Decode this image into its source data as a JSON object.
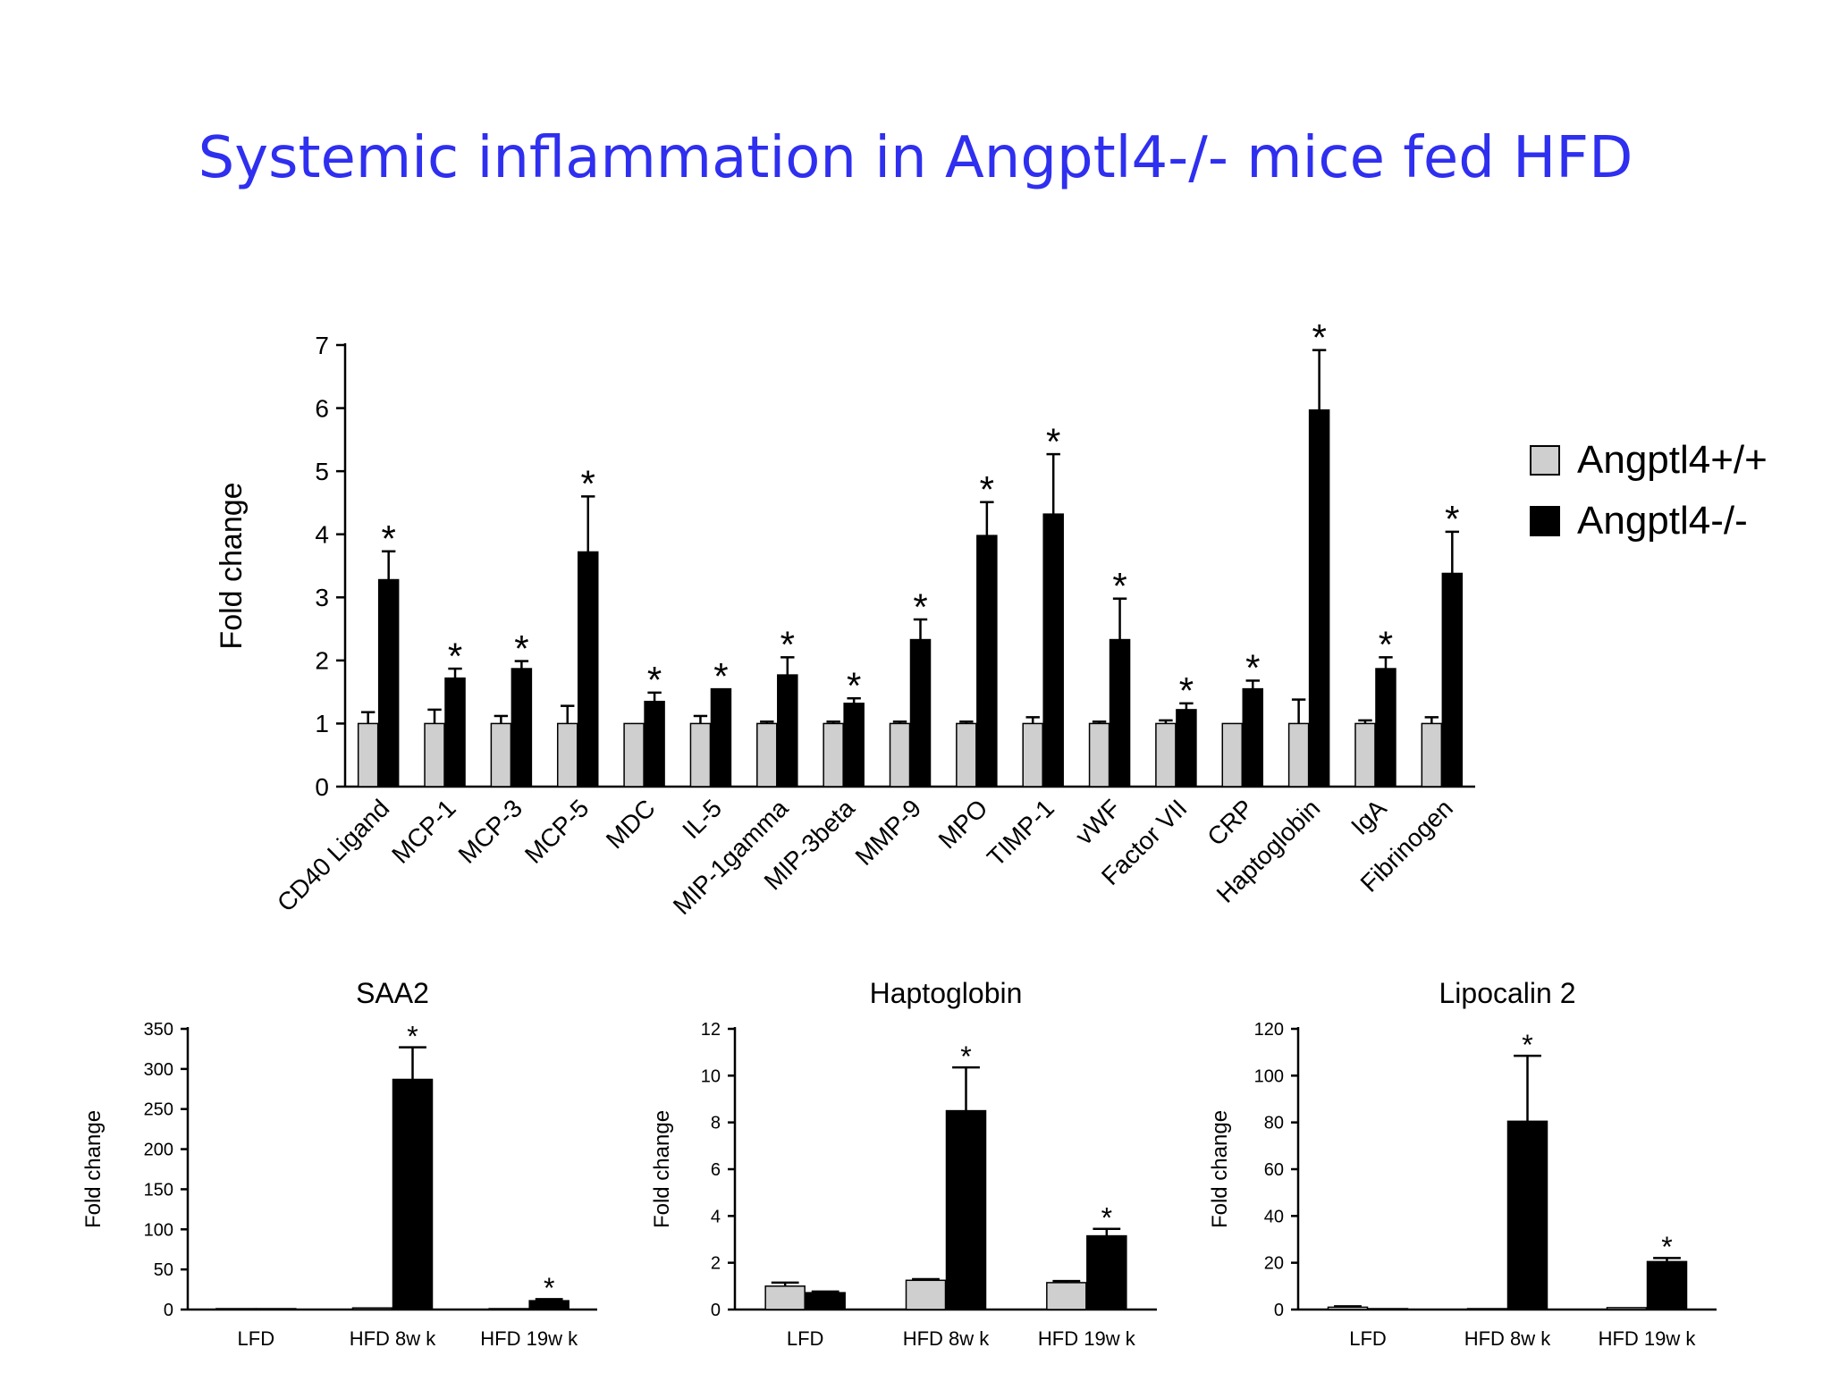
{
  "slide": {
    "title": "Systemic inflammation in Angptl4-/- mice fed HFD"
  },
  "colors": {
    "title": "#2f2ff0",
    "wildtype": "#cfcfcf",
    "knockout": "#000000"
  },
  "legend": [
    {
      "label": "Angptl4+/+",
      "color": "#cfcfcf"
    },
    {
      "label": "Angptl4-/-",
      "color": "#000000"
    }
  ],
  "chart_data": [
    {
      "id": "main",
      "type": "bar",
      "title": "",
      "ylabel": "Fold change",
      "ylim": [
        0,
        7
      ],
      "yticks": [
        0,
        1,
        2,
        3,
        4,
        5,
        6,
        7
      ],
      "categories": [
        "CD40 Ligand",
        "MCP-1",
        "MCP-3",
        "MCP-5",
        "MDC",
        "IL-5",
        "MIP-1gamma",
        "MIP-3beta",
        "MMP-9",
        "MPO",
        "TIMP-1",
        "vWF",
        "Factor VII",
        "CRP",
        "Haptoglobin",
        "IgA",
        "Fibrinogen"
      ],
      "series": [
        {
          "name": "Angptl4+/+",
          "values": [
            1.0,
            1.0,
            1.0,
            1.0,
            1.0,
            1.0,
            1.0,
            1.0,
            1.0,
            1.0,
            1.0,
            1.0,
            1.0,
            1.0,
            1.0,
            1.0,
            1.0
          ],
          "errors": [
            0.18,
            0.22,
            0.12,
            0.28,
            0.0,
            0.12,
            0.03,
            0.03,
            0.03,
            0.03,
            0.1,
            0.03,
            0.05,
            0.0,
            0.38,
            0.05,
            0.1
          ]
        },
        {
          "name": "Angptl4-/-",
          "values": [
            3.28,
            1.72,
            1.87,
            3.72,
            1.35,
            1.55,
            1.77,
            1.32,
            2.33,
            3.98,
            4.32,
            2.33,
            1.22,
            1.55,
            5.97,
            1.87,
            3.38
          ],
          "errors": [
            0.45,
            0.15,
            0.12,
            0.88,
            0.14,
            0.0,
            0.28,
            0.08,
            0.32,
            0.53,
            0.95,
            0.65,
            0.1,
            0.13,
            0.95,
            0.18,
            0.66
          ]
        }
      ],
      "significant": [
        true,
        true,
        true,
        true,
        true,
        true,
        true,
        true,
        true,
        true,
        true,
        true,
        true,
        true,
        true,
        true,
        true
      ]
    },
    {
      "id": "saa2",
      "type": "bar",
      "title": "SAA2",
      "ylabel": "Fold change",
      "ylim": [
        0,
        350
      ],
      "yticks": [
        0,
        50,
        100,
        150,
        200,
        250,
        300,
        350
      ],
      "categories": [
        "LFD",
        "HFD 8w k",
        "HFD 19w k"
      ],
      "series": [
        {
          "name": "Angptl4+/+",
          "values": [
            0.5,
            2,
            0.5
          ],
          "errors": [
            0,
            0,
            0
          ]
        },
        {
          "name": "Angptl4-/-",
          "values": [
            0.5,
            287,
            11
          ],
          "errors": [
            0,
            40,
            2
          ]
        }
      ],
      "significant": [
        false,
        true,
        true
      ]
    },
    {
      "id": "haptoglobin",
      "type": "bar",
      "title": "Haptoglobin",
      "ylabel": "Fold change",
      "ylim": [
        0,
        12
      ],
      "yticks": [
        0,
        2,
        4,
        6,
        8,
        10,
        12
      ],
      "categories": [
        "LFD",
        "HFD 8w k",
        "HFD 19w k"
      ],
      "series": [
        {
          "name": "Angptl4+/+",
          "values": [
            1.0,
            1.25,
            1.15
          ],
          "errors": [
            0.15,
            0.05,
            0.07
          ]
        },
        {
          "name": "Angptl4-/-",
          "values": [
            0.72,
            8.5,
            3.15
          ],
          "errors": [
            0.05,
            1.85,
            0.3
          ]
        }
      ],
      "significant": [
        false,
        true,
        true
      ]
    },
    {
      "id": "lipocalin2",
      "type": "bar",
      "title": "Lipocalin 2",
      "ylabel": "Fold change",
      "ylim": [
        0,
        120
      ],
      "yticks": [
        0,
        20,
        40,
        60,
        80,
        100,
        120
      ],
      "categories": [
        "LFD",
        "HFD 8w k",
        "HFD 19w k"
      ],
      "series": [
        {
          "name": "Angptl4+/+",
          "values": [
            1.0,
            0.3,
            0.8
          ],
          "errors": [
            0.4,
            0,
            0
          ]
        },
        {
          "name": "Angptl4-/-",
          "values": [
            0.3,
            80.5,
            20.5
          ],
          "errors": [
            0,
            28,
            1.5
          ]
        }
      ],
      "significant": [
        false,
        true,
        true
      ]
    }
  ]
}
